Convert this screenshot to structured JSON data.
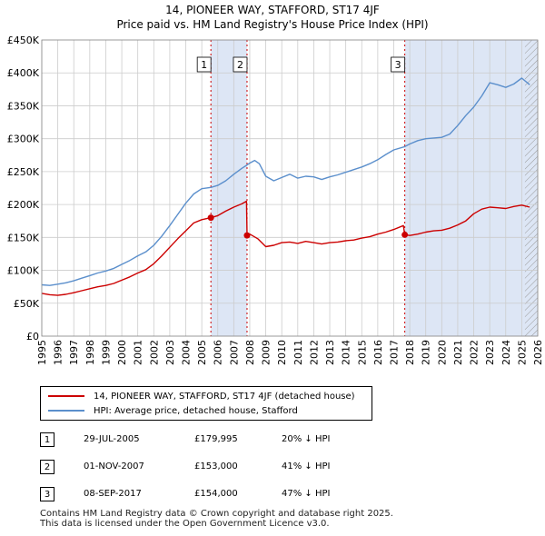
{
  "title_line1": "14, PIONEER WAY, STAFFORD, ST17 4JF",
  "title_line2": "Price paid vs. HM Land Registry's House Price Index (HPI)",
  "colors": {
    "property": "#cc0000",
    "hpi": "#5b8fcc",
    "shade": "#dde6f5",
    "grid": "#cccccc",
    "marker_line": "#cc0000"
  },
  "chart_data": {
    "type": "line",
    "title": "Price paid vs. HM Land Registry's House Price Index (HPI)",
    "xlim": [
      1995,
      2026
    ],
    "ylim": [
      0,
      450000
    ],
    "x_ticks": [
      "1995",
      "1996",
      "1997",
      "1998",
      "1999",
      "2000",
      "2001",
      "2002",
      "2003",
      "2004",
      "2005",
      "2006",
      "2007",
      "2008",
      "2009",
      "2010",
      "2011",
      "2012",
      "2013",
      "2014",
      "2015",
      "2016",
      "2017",
      "2018",
      "2019",
      "2020",
      "2021",
      "2022",
      "2023",
      "2024",
      "2025",
      "2026"
    ],
    "y_ticks": [
      {
        "value": 0,
        "label": "£0"
      },
      {
        "value": 50000,
        "label": "£50K"
      },
      {
        "value": 100000,
        "label": "£100K"
      },
      {
        "value": 150000,
        "label": "£150K"
      },
      {
        "value": 200000,
        "label": "£200K"
      },
      {
        "value": 250000,
        "label": "£250K"
      },
      {
        "value": 300000,
        "label": "£300K"
      },
      {
        "value": 350000,
        "label": "£350K"
      },
      {
        "value": 400000,
        "label": "£400K"
      },
      {
        "value": 450000,
        "label": "£450K"
      }
    ],
    "shaded_periods": [
      [
        2005.57,
        2007.83
      ],
      [
        2017.69,
        2026
      ]
    ],
    "hatch_from": 2025.2,
    "series": [
      {
        "name": "14, PIONEER WAY, STAFFORD, ST17 4JF (detached house)",
        "color": "#cc0000",
        "points": [
          [
            1995.0,
            65000
          ],
          [
            1995.5,
            63000
          ],
          [
            1996.0,
            62000
          ],
          [
            1996.5,
            63500
          ],
          [
            1997.0,
            66000
          ],
          [
            1997.5,
            69000
          ],
          [
            1998.0,
            72000
          ],
          [
            1998.5,
            75000
          ],
          [
            1999.0,
            77000
          ],
          [
            1999.5,
            80000
          ],
          [
            2000.0,
            85000
          ],
          [
            2000.5,
            90000
          ],
          [
            2001.0,
            96000
          ],
          [
            2001.5,
            101000
          ],
          [
            2002.0,
            110000
          ],
          [
            2002.5,
            122000
          ],
          [
            2003.0,
            135000
          ],
          [
            2003.5,
            148000
          ],
          [
            2004.0,
            160000
          ],
          [
            2004.5,
            172000
          ],
          [
            2005.0,
            177000
          ],
          [
            2005.57,
            179995
          ],
          [
            2006.0,
            183000
          ],
          [
            2006.5,
            190000
          ],
          [
            2007.0,
            196000
          ],
          [
            2007.5,
            201000
          ],
          [
            2007.8,
            205000
          ],
          [
            2007.83,
            153000
          ],
          [
            2008.0,
            155000
          ],
          [
            2008.5,
            148000
          ],
          [
            2009.0,
            136000
          ],
          [
            2009.5,
            138000
          ],
          [
            2010.0,
            142000
          ],
          [
            2010.5,
            143000
          ],
          [
            2011.0,
            141000
          ],
          [
            2011.5,
            144000
          ],
          [
            2012.0,
            142000
          ],
          [
            2012.5,
            140000
          ],
          [
            2013.0,
            142000
          ],
          [
            2013.5,
            143000
          ],
          [
            2014.0,
            145000
          ],
          [
            2014.5,
            146000
          ],
          [
            2015.0,
            149000
          ],
          [
            2015.5,
            151000
          ],
          [
            2016.0,
            155000
          ],
          [
            2016.5,
            158000
          ],
          [
            2017.0,
            162000
          ],
          [
            2017.6,
            168000
          ],
          [
            2017.69,
            154000
          ],
          [
            2018.0,
            153000
          ],
          [
            2018.5,
            155000
          ],
          [
            2019.0,
            158000
          ],
          [
            2019.5,
            160000
          ],
          [
            2020.0,
            161000
          ],
          [
            2020.5,
            164000
          ],
          [
            2021.0,
            169000
          ],
          [
            2021.5,
            175000
          ],
          [
            2022.0,
            186000
          ],
          [
            2022.5,
            193000
          ],
          [
            2023.0,
            196000
          ],
          [
            2023.5,
            195000
          ],
          [
            2024.0,
            194000
          ],
          [
            2024.5,
            197000
          ],
          [
            2025.0,
            199000
          ],
          [
            2025.5,
            196000
          ]
        ]
      },
      {
        "name": "HPI: Average price, detached house, Stafford",
        "color": "#5b8fcc",
        "points": [
          [
            1995.0,
            78000
          ],
          [
            1995.5,
            77000
          ],
          [
            1996.0,
            79000
          ],
          [
            1996.5,
            81000
          ],
          [
            1997.0,
            84000
          ],
          [
            1997.5,
            88000
          ],
          [
            1998.0,
            92000
          ],
          [
            1998.5,
            96000
          ],
          [
            1999.0,
            99000
          ],
          [
            1999.5,
            103000
          ],
          [
            2000.0,
            109000
          ],
          [
            2000.5,
            115000
          ],
          [
            2001.0,
            122000
          ],
          [
            2001.5,
            128000
          ],
          [
            2002.0,
            138000
          ],
          [
            2002.5,
            152000
          ],
          [
            2003.0,
            168000
          ],
          [
            2003.5,
            185000
          ],
          [
            2004.0,
            202000
          ],
          [
            2004.5,
            216000
          ],
          [
            2005.0,
            224000
          ],
          [
            2005.57,
            226000
          ],
          [
            2006.0,
            229000
          ],
          [
            2006.5,
            236000
          ],
          [
            2007.0,
            246000
          ],
          [
            2007.5,
            255000
          ],
          [
            2007.83,
            260000
          ],
          [
            2008.0,
            263000
          ],
          [
            2008.3,
            267000
          ],
          [
            2008.6,
            262000
          ],
          [
            2009.0,
            243000
          ],
          [
            2009.5,
            236000
          ],
          [
            2010.0,
            241000
          ],
          [
            2010.5,
            246000
          ],
          [
            2011.0,
            240000
          ],
          [
            2011.5,
            243000
          ],
          [
            2012.0,
            242000
          ],
          [
            2012.5,
            238000
          ],
          [
            2013.0,
            242000
          ],
          [
            2013.5,
            245000
          ],
          [
            2014.0,
            249000
          ],
          [
            2014.5,
            253000
          ],
          [
            2015.0,
            257000
          ],
          [
            2015.5,
            262000
          ],
          [
            2016.0,
            268000
          ],
          [
            2016.5,
            276000
          ],
          [
            2017.0,
            283000
          ],
          [
            2017.69,
            288000
          ],
          [
            2018.0,
            292000
          ],
          [
            2018.5,
            297000
          ],
          [
            2019.0,
            300000
          ],
          [
            2019.5,
            301000
          ],
          [
            2020.0,
            302000
          ],
          [
            2020.5,
            307000
          ],
          [
            2021.0,
            320000
          ],
          [
            2021.5,
            335000
          ],
          [
            2022.0,
            348000
          ],
          [
            2022.5,
            365000
          ],
          [
            2023.0,
            385000
          ],
          [
            2023.5,
            382000
          ],
          [
            2024.0,
            378000
          ],
          [
            2024.5,
            383000
          ],
          [
            2025.0,
            392000
          ],
          [
            2025.5,
            382000
          ]
        ]
      }
    ],
    "sale_markers": [
      {
        "id": "1",
        "x": 2005.57,
        "y": 179995
      },
      {
        "id": "2",
        "x": 2007.83,
        "y": 153000
      },
      {
        "id": "3",
        "x": 2017.69,
        "y": 154000
      }
    ]
  },
  "legend": {
    "property_label": "14, PIONEER WAY, STAFFORD, ST17 4JF (detached house)",
    "hpi_label": "HPI: Average price, detached house, Stafford"
  },
  "sales": [
    {
      "num": "1",
      "date": "29-JUL-2005",
      "price": "£179,995",
      "hpi": "20% ↓ HPI"
    },
    {
      "num": "2",
      "date": "01-NOV-2007",
      "price": "£153,000",
      "hpi": "41% ↓ HPI"
    },
    {
      "num": "3",
      "date": "08-SEP-2017",
      "price": "£154,000",
      "hpi": "47% ↓ HPI"
    }
  ],
  "footer_line1": "Contains HM Land Registry data © Crown copyright and database right 2025.",
  "footer_line2": "This data is licensed under the Open Government Licence v3.0."
}
